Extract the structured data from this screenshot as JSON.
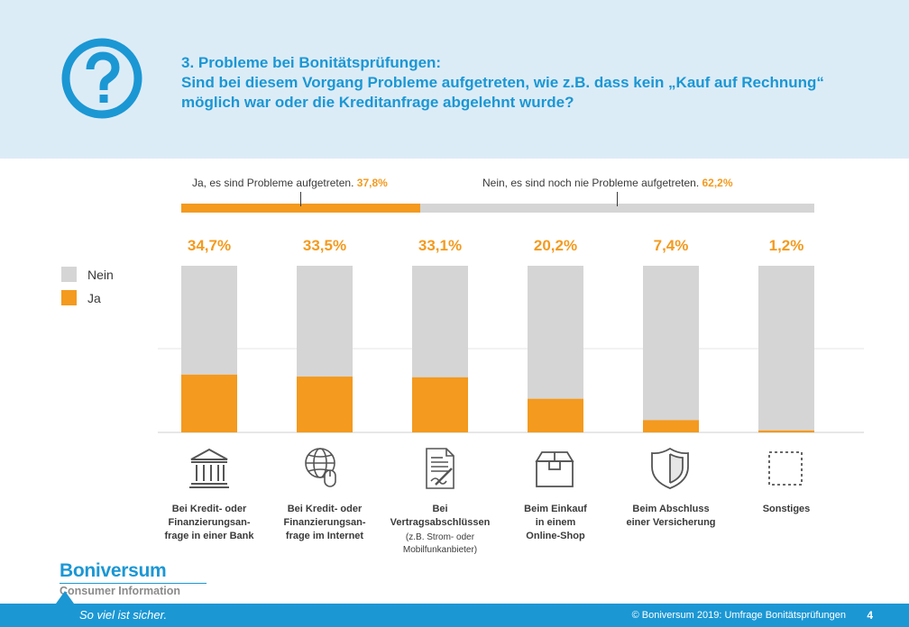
{
  "header": {
    "title_line1": "3. Probleme bei Bonitätsprüfungen:",
    "title_line2": "Sind bei diesem Vorgang Probleme aufgetreten, wie z.B. dass kein „Kauf auf Rechnung“",
    "title_line3": "möglich war oder die Kreditanfrage abgelehnt wurde?",
    "icon": "question-mark-circle-icon"
  },
  "summary": {
    "ja_text": "Ja, es sind Probleme aufgetreten.",
    "ja_pct": "37,8%",
    "ja_value": 37.8,
    "nein_text": "Nein, es sind noch nie Probleme aufgetreten.",
    "nein_pct": "62,2%",
    "nein_value": 62.2
  },
  "chart_data": {
    "type": "bar",
    "stacked": true,
    "categories": [
      "Bei Kredit- oder Finanzierungsanfrage in einer Bank",
      "Bei Kredit- oder Finanzierungsanfrage im Internet",
      "Bei Vertragsabschlüssen",
      "Beim Einkauf in einem Online-Shop",
      "Beim Abschluss einer Versicherung",
      "Sonstiges"
    ],
    "series": [
      {
        "name": "Ja",
        "values": [
          34.7,
          33.5,
          33.1,
          20.2,
          7.4,
          1.2
        ],
        "color": "#f39a1f"
      },
      {
        "name": "Nein",
        "values": [
          65.3,
          66.5,
          66.9,
          79.8,
          92.6,
          98.8
        ],
        "color": "#d5d5d5"
      }
    ],
    "value_labels": [
      "34,7%",
      "33,5%",
      "33,1%",
      "20,2%",
      "7,4%",
      "1,2%"
    ],
    "ylim": [
      0,
      100
    ],
    "legend": [
      "Nein",
      "Ja"
    ],
    "legend_position": "left"
  },
  "categories_display": [
    {
      "line1": "Bei Kredit- oder",
      "line2": "Finanzierungsan-",
      "line3": "frage in einer Bank",
      "note1": "",
      "note2": "",
      "icon": "bank-icon"
    },
    {
      "line1": "Bei Kredit- oder",
      "line2": "Finanzierungsan-",
      "line3": "frage im Internet",
      "note1": "",
      "note2": "",
      "icon": "globe-mouse-icon"
    },
    {
      "line1": "Bei Vertragsabschlüssen",
      "line2": "",
      "line3": "",
      "note1": "(z.B. Strom- oder",
      "note2": "Mobilfunkanbieter)",
      "icon": "contract-icon"
    },
    {
      "line1": "Beim Einkauf",
      "line2": "in einem",
      "line3": "Online-Shop",
      "note1": "",
      "note2": "",
      "icon": "package-icon"
    },
    {
      "line1": "Beim Abschluss",
      "line2": "einer Versicherung",
      "line3": "",
      "note1": "",
      "note2": "",
      "icon": "shield-icon"
    },
    {
      "line1": "Sonstiges",
      "line2": "",
      "line3": "",
      "note1": "",
      "note2": "",
      "icon": "dotted-square-icon"
    }
  ],
  "brand": {
    "name": "Boniversum",
    "subtitle": "Consumer Information"
  },
  "footer": {
    "slogan": "So viel ist sicher.",
    "copyright": "© Boniversum 2019: Umfrage Bonitätsprüfungen",
    "page": "4"
  },
  "colors": {
    "accent": "#1b97d4",
    "orange": "#f39a1f",
    "grey": "#d5d5d5",
    "header_bg": "#dcecf7"
  }
}
